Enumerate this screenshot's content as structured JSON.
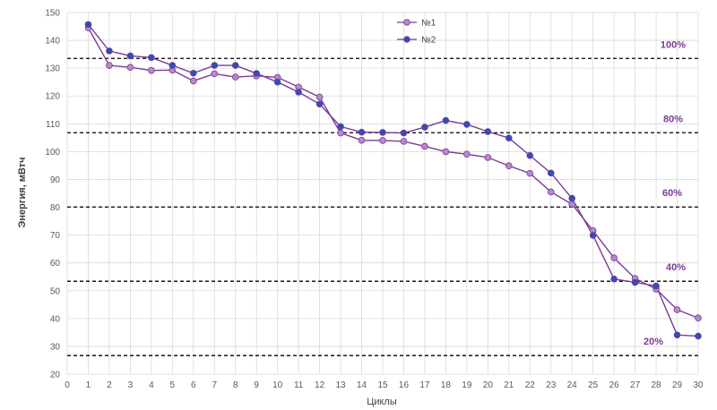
{
  "colors": {
    "series1_line": "#7a3b96",
    "series1_marker": "#b58ac9",
    "series2_line": "#7a3b96",
    "series2_marker": "#2e4fb8",
    "ref_label": "#7a3b96",
    "grid": "#d9d9d9",
    "ref_line": "#000000"
  },
  "chart_data": {
    "type": "line",
    "xlabel": "Циклы",
    "ylabel": "Энергия, мВтч",
    "xlim": [
      0,
      30
    ],
    "ylim": [
      20,
      150
    ],
    "x_ticks": [
      "0",
      "1",
      "2",
      "3",
      "4",
      "5",
      "6",
      "7",
      "8",
      "9",
      "10",
      "11",
      "12",
      "13",
      "14",
      "15",
      "16",
      "17",
      "18",
      "19",
      "20",
      "21",
      "22",
      "23",
      "24",
      "25",
      "26",
      "27",
      "28",
      "29",
      "30"
    ],
    "y_ticks": [
      "20",
      "30",
      "40",
      "50",
      "60",
      "70",
      "80",
      "90",
      "100",
      "110",
      "120",
      "130",
      "140",
      "150"
    ],
    "grid": true,
    "legend_position": "top-center",
    "x": [
      1,
      2,
      3,
      4,
      5,
      6,
      7,
      8,
      9,
      10,
      11,
      12,
      13,
      14,
      15,
      16,
      17,
      18,
      19,
      20,
      21,
      22,
      23,
      24,
      25,
      26,
      27,
      28,
      29,
      30
    ],
    "series": [
      {
        "name": "№1",
        "values": [
          144.5,
          131,
          130.3,
          129.2,
          129.3,
          125.4,
          128,
          126.8,
          127.2,
          126.7,
          123.2,
          119.6,
          106.7,
          104.1,
          104,
          103.7,
          101.9,
          100,
          99.1,
          97.9,
          94.9,
          92.2,
          85.5,
          81.1,
          71.6,
          61.8,
          54.4,
          50.6,
          43.2,
          40.2
        ]
      },
      {
        "name": "№2",
        "values": [
          145.7,
          136.2,
          134.4,
          133.8,
          131,
          128.2,
          131,
          131,
          128.1,
          125,
          121.4,
          117.1,
          109,
          107,
          106.9,
          106.7,
          108.8,
          111.2,
          109.8,
          107.2,
          104.9,
          98.6,
          92.3,
          83.2,
          69.9,
          54.2,
          53,
          51.7,
          34.1,
          33.7
        ]
      }
    ],
    "reference_lines": [
      {
        "value": 133.5,
        "label": "100%"
      },
      {
        "value": 106.8,
        "label": "80%"
      },
      {
        "value": 80.1,
        "label": "60%"
      },
      {
        "value": 53.4,
        "label": "40%"
      },
      {
        "value": 26.7,
        "label": "20%"
      }
    ]
  }
}
